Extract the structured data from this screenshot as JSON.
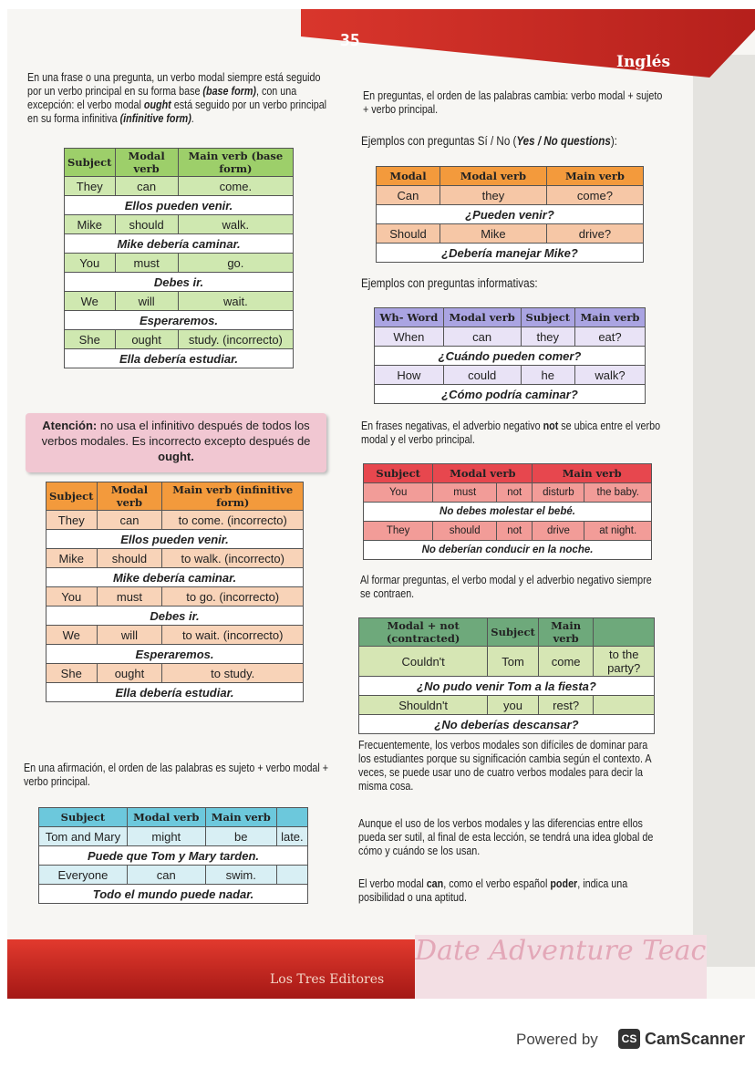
{
  "header": {
    "page_number": "35",
    "subject": "Inglés"
  },
  "left": {
    "intro": "En una frase o una pregunta, un verbo modal siempre está seguido por un verbo principal en su forma base <b><i>(base form)</i></b>, con una excepción: el verbo modal <b><i>ought</i></b> está seguido por un verbo principal en su forma infinitiva <b><i>(infinitive form)</i></b>.",
    "note": "<b>Atención:</b> no usa el infinitivo después de todos los verbos modales. Es incorrecto excepto después de <b>ought.</b>",
    "affirm": "En una afirmación, el orden de las palabras es sujeto + verbo modal + verbo principal."
  },
  "right": {
    "q_intro": "En preguntas, el orden de las palabras cambia: verbo modal + sujeto + verbo principal.",
    "yn_intro": "Ejemplos con preguntas Sí / No (<b><i>Yes / No questions</i></b>):",
    "wh_intro": "Ejemplos con preguntas informativas:",
    "neg_intro": "En frases negativas, el adverbio negativo <b>not</b> se ubica entre el verbo modal y el verbo principal.",
    "contr_intro": "Al formar preguntas, el verbo modal y el adverbio negativo siempre se contraen.",
    "p1": "Frecuentemente, los verbos modales son difíciles de dominar para los estudiantes porque su significación cambia según el contexto. A veces, se puede usar uno de cuatro verbos modales para decir la misma cosa.",
    "p2": "Aunque el uso de los verbos modales y las diferencias entre ellos pueda ser sutil, al final de esta lección, se tendrá una idea global de cómo y cuándo se los usan.",
    "p3": "El verbo modal <b>can</b>, como el verbo español <b>poder</b>, indica una posibilidad o una aptitud."
  },
  "tables": [
    {
      "id": "base-form",
      "header_color": "#9dcf6a",
      "cell_color": "#cfe8b0",
      "headers": [
        "Subject",
        "Modal verb",
        "Main verb (base form)"
      ],
      "rows": [
        [
          "They",
          "can",
          "come."
        ],
        "Ellos pueden venir.",
        [
          "Mike",
          "should",
          "walk."
        ],
        "Mike debería caminar.",
        [
          "You",
          "must",
          "go."
        ],
        "Debes ir.",
        [
          "We",
          "will",
          "wait."
        ],
        "Esperaremos.",
        [
          "She",
          "ought",
          "study. (incorrecto)"
        ],
        "Ella debería estudiar."
      ]
    },
    {
      "id": "infinitive-form",
      "header_color": "#f39a3c",
      "cell_color": "#f8d3b8",
      "headers": [
        "Subject",
        "Modal verb",
        "Main verb (infinitive form)"
      ],
      "rows": [
        [
          "They",
          "can",
          "to come. (incorrecto)"
        ],
        "Ellos pueden venir.",
        [
          "Mike",
          "should",
          "to walk. (incorrecto)"
        ],
        "Mike debería caminar.",
        [
          "You",
          "must",
          "to go. (incorrecto)"
        ],
        "Debes ir.",
        [
          "We",
          "will",
          "to wait. (incorrecto)"
        ],
        "Esperaremos.",
        [
          "She",
          "ought",
          "to study."
        ],
        "Ella debería estudiar."
      ]
    },
    {
      "id": "affirmation",
      "header_color": "#6cc8dc",
      "cell_color": "#d8eff4",
      "headers": [
        "Subject",
        "Modal verb",
        "Main verb",
        ""
      ],
      "rows": [
        [
          "Tom and Mary",
          "might",
          "be",
          "late."
        ],
        "Puede que Tom y Mary tarden.",
        [
          "Everyone",
          "can",
          "swim.",
          ""
        ],
        "Todo el mundo puede nadar."
      ]
    },
    {
      "id": "yes-no",
      "header_color": "#f39a3c",
      "cell_color": "#f6c7a6",
      "headers": [
        "Modal",
        "Modal verb",
        "Main verb"
      ],
      "rows": [
        [
          "Can",
          "they",
          "come?"
        ],
        "¿Pueden venir?",
        [
          "Should",
          "Mike",
          "drive?"
        ],
        "¿Debería manejar Mike?"
      ]
    },
    {
      "id": "wh-questions",
      "header_color": "#aaa4e2",
      "cell_color": "#e9e3f6",
      "headers": [
        "Wh- Word",
        "Modal verb",
        "Subject",
        "Main verb"
      ],
      "rows": [
        [
          "When",
          "can",
          "they",
          "eat?"
        ],
        "¿Cuándo pueden comer?",
        [
          "How",
          "could",
          "he",
          "walk?"
        ],
        "¿Cómo podría caminar?"
      ]
    },
    {
      "id": "negative",
      "header_color": "#e7474e",
      "cell_color": "#f29c98",
      "headers": [
        "Subject",
        "Modal verb",
        "Main verb"
      ],
      "header_spans": [
        1,
        2,
        2
      ],
      "rows": [
        [
          "You",
          "must",
          "not",
          "disturb",
          "the baby."
        ],
        "No debes molestar el bebé.",
        [
          "They",
          "should",
          "not",
          "drive",
          "at night."
        ],
        "No deberían conducir en la noche."
      ]
    },
    {
      "id": "contracted",
      "header_color": "#6ea97b",
      "cell_color": "#d6e6b4",
      "headers": [
        "Modal + not (contracted)",
        "Subject",
        "Main verb",
        ""
      ],
      "rows": [
        [
          "Couldn't",
          "Tom",
          "come",
          "to the party?"
        ],
        "¿No pudo venir Tom a la fiesta?",
        [
          "Shouldn't",
          "you",
          "rest?",
          ""
        ],
        "¿No deberías descansar?"
      ]
    }
  ],
  "footer": {
    "publisher": "Los Tres Editores",
    "decoration": "Date Adventure Teaching This"
  },
  "watermark": {
    "powered_by": "Powered by",
    "logo": "CS",
    "brand": "CamScanner"
  }
}
